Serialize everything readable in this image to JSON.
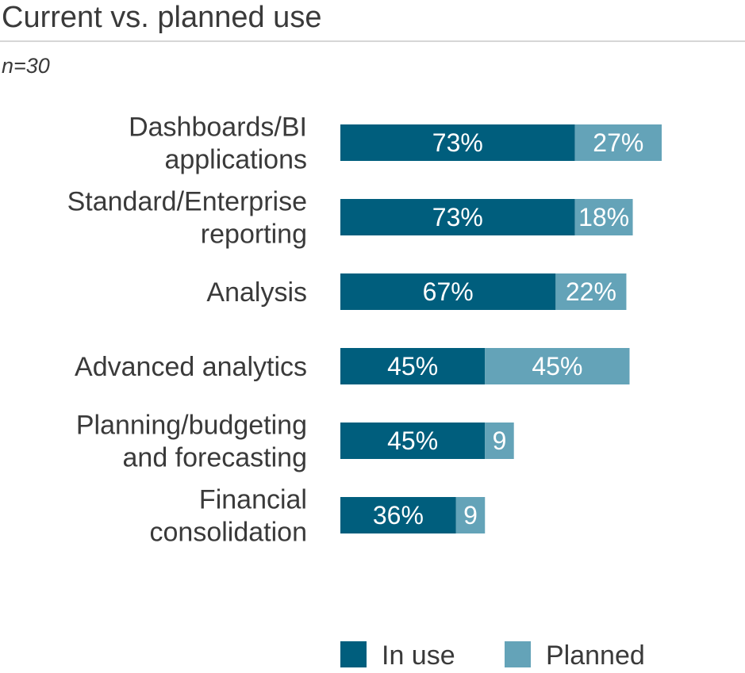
{
  "chart_data": {
    "type": "bar",
    "orientation": "horizontal",
    "stacked": true,
    "title": "Current vs. planned use",
    "subtitle": "n=30",
    "categories": [
      [
        "Dashboards/BI",
        "applications"
      ],
      [
        "Standard/Enterprise",
        "reporting"
      ],
      [
        "Analysis"
      ],
      [
        "Advanced analytics"
      ],
      [
        "Planning/budgeting",
        "and forecasting"
      ],
      [
        "Financial",
        "consolidation"
      ]
    ],
    "series": [
      {
        "name": "In use",
        "color": "#005e7d",
        "values": [
          73,
          73,
          67,
          45,
          45,
          36
        ],
        "labels": [
          "73%",
          "73%",
          "67%",
          "45%",
          "45%",
          "36%"
        ]
      },
      {
        "name": "Planned",
        "color": "#64a3b8",
        "values": [
          27,
          18,
          22,
          45,
          9,
          9
        ],
        "labels": [
          "27%",
          "18%",
          "22%",
          "45%",
          "9",
          "9"
        ]
      }
    ],
    "xlim": [
      0,
      100
    ],
    "grid": false,
    "legend_position": "bottom-right"
  }
}
